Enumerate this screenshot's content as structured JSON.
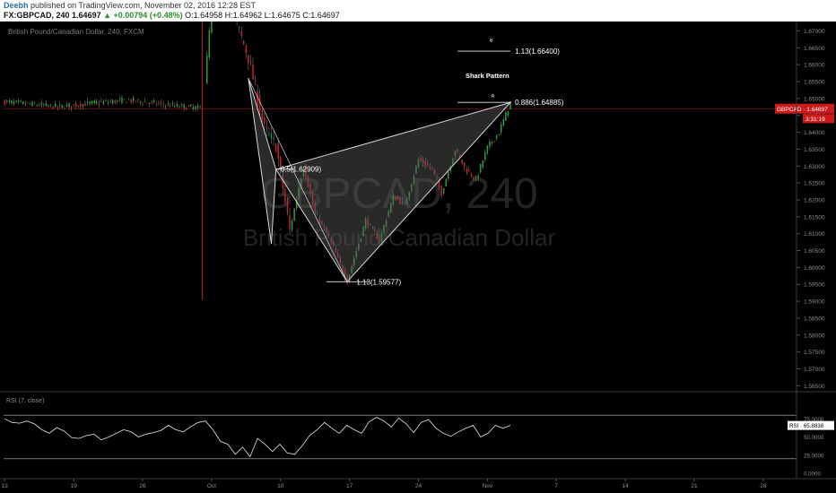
{
  "header": {
    "author": "Deebh",
    "published": "published on TradingView.com, November 02, 2016 12:28 EST",
    "symbol": "FX:GBPCAD, 240",
    "last": "1.64697",
    "change": "▲ +0.00794 (+0.48%)",
    "ohlc": "O:1.64958 H:1.64962 L:1.64675 C:1.64697"
  },
  "colors": {
    "background": "#000000",
    "up": "#2e9b3a",
    "down": "#c7202b",
    "wick": "#cfcfcf",
    "price_line": "#8b1313",
    "price_label": "#cc1a1a",
    "pattern_fill": "#5a5a5a",
    "pattern_line": "#d8d8d8",
    "rsi_line": "#e6e6e6"
  },
  "chart_data": [
    {
      "type": "candlestick",
      "title": "British Pound/Canadian Dollar, 240, FXCM",
      "watermark_symbol": "GBPCAD, 240",
      "watermark_name": "British Pound/Canadian Dollar",
      "x_ticks": [
        "12",
        "19",
        "26",
        "Oct",
        "10",
        "17",
        "24",
        "Nov",
        "7",
        "14",
        "21",
        "28"
      ],
      "x_tick_slots": [
        0,
        30,
        60,
        90,
        120,
        150,
        180,
        210,
        240,
        270,
        300,
        330
      ],
      "y_ticks": [
        "1.67000",
        "1.66500",
        "1.66000",
        "1.65500",
        "1.65000",
        "1.64500",
        "1.64000",
        "1.63500",
        "1.63000",
        "1.62500",
        "1.62000",
        "1.61500",
        "1.61000",
        "1.60500",
        "1.60000",
        "1.59500",
        "1.59000",
        "1.58500",
        "1.58000",
        "1.57500",
        "1.57000",
        "1.56500"
      ],
      "y_range": [
        1.5635,
        1.6725
      ],
      "last_price": 1.64697,
      "price_label": "GBPCAD · 1.64697",
      "countdown": "3:31:19",
      "anchors": [
        {
          "slot": 0,
          "price": 1.649
        },
        {
          "slot": 24,
          "price": 1.6475
        },
        {
          "slot": 36,
          "price": 1.6485
        },
        {
          "slot": 54,
          "price": 1.6495
        },
        {
          "slot": 72,
          "price": 1.648
        },
        {
          "slot": 86,
          "price": 1.647
        },
        {
          "slot": 90,
          "price": 1.6775
        },
        {
          "slot": 100,
          "price": 1.674
        },
        {
          "slot": 106,
          "price": 1.662
        },
        {
          "slot": 108,
          "price": 1.656
        },
        {
          "slot": 113,
          "price": 1.641
        },
        {
          "slot": 118,
          "price": 1.636
        },
        {
          "slot": 124,
          "price": 1.611
        },
        {
          "slot": 130,
          "price": 1.63
        },
        {
          "slot": 135,
          "price": 1.616
        },
        {
          "slot": 141,
          "price": 1.609
        },
        {
          "slot": 149,
          "price": 1.596
        },
        {
          "slot": 153,
          "price": 1.605
        },
        {
          "slot": 157,
          "price": 1.614
        },
        {
          "slot": 163,
          "price": 1.608
        },
        {
          "slot": 169,
          "price": 1.621
        },
        {
          "slot": 174,
          "price": 1.6185
        },
        {
          "slot": 180,
          "price": 1.632
        },
        {
          "slot": 186,
          "price": 1.629
        },
        {
          "slot": 190,
          "price": 1.622
        },
        {
          "slot": 196,
          "price": 1.635
        },
        {
          "slot": 200,
          "price": 1.6295
        },
        {
          "slot": 205,
          "price": 1.626
        },
        {
          "slot": 210,
          "price": 1.6355
        },
        {
          "slot": 215,
          "price": 1.64
        },
        {
          "slot": 220,
          "price": 1.6488
        }
      ],
      "pattern": {
        "points": [
          {
            "slot": 106,
            "price": 1.656
          },
          {
            "slot": 118,
            "price": 1.629
          },
          {
            "slot": 149,
            "price": 1.5958
          },
          {
            "slot": 220,
            "price": 1.6488
          }
        ],
        "left_leg_low": {
          "slot": 116,
          "price": 1.607
        },
        "label": "Shark Pattern",
        "levels": [
          {
            "label": "0.5(1.62909)",
            "price": 1.62909,
            "from": 118,
            "to": 126,
            "text_slot": 120
          },
          {
            "label": "1.13(1.59577)",
            "price": 1.59577,
            "from": 140,
            "to": 158,
            "text_slot": 153
          },
          {
            "label": "0.886(1.64885)",
            "price": 1.64885,
            "from": 197,
            "to": 220,
            "text_slot": 222
          },
          {
            "label": "1.13(1.66400)",
            "price": 1.664,
            "from": 197,
            "to": 220,
            "text_slot": 222
          }
        ]
      }
    },
    {
      "type": "line",
      "title": "RSI (7, close)",
      "y_ticks": [
        "75.0000",
        "50.0000",
        "25.0000",
        "0.0000"
      ],
      "y_range": [
        0,
        100
      ],
      "bands": [
        80,
        20
      ],
      "last_value": 65.8838,
      "value_label": "RSI · 65.8838",
      "series": [
        {
          "values": [
            75,
            70,
            69,
            72,
            68,
            60,
            55,
            63,
            58,
            49,
            48,
            52,
            54,
            46,
            50,
            55,
            60,
            57,
            50,
            54,
            56,
            59,
            66,
            60,
            57,
            64,
            70,
            72,
            60,
            44,
            40,
            26,
            36,
            23,
            48,
            40,
            30,
            40,
            28,
            26,
            38,
            52,
            60,
            70,
            62,
            55,
            66,
            60,
            55,
            71,
            77,
            72,
            64,
            76,
            68,
            56,
            70,
            74,
            62,
            55,
            51,
            57,
            62,
            66,
            50,
            55,
            66,
            62,
            66
          ]
        }
      ]
    }
  ]
}
